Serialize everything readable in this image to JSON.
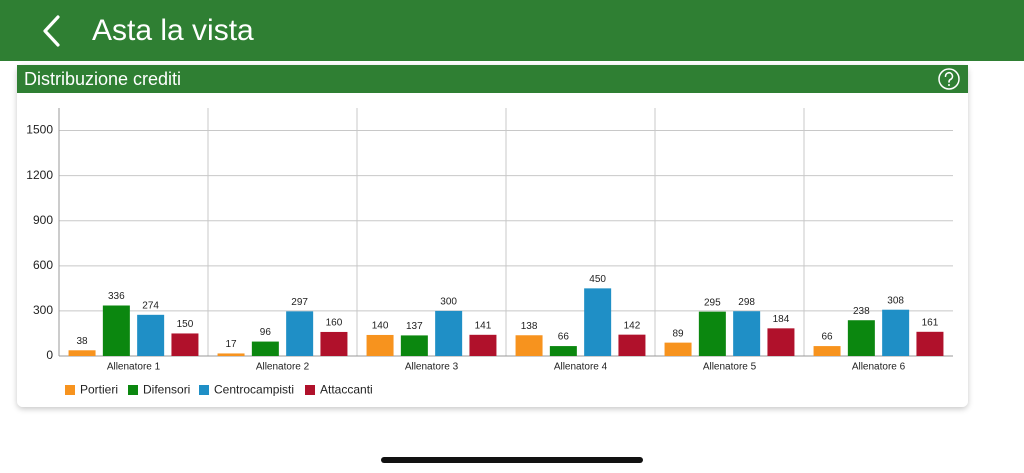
{
  "header": {
    "title": "Asta la vista"
  },
  "card": {
    "title": "Distribuzione crediti"
  },
  "chart_data": {
    "type": "bar",
    "categories": [
      "Allenatore 1",
      "Allenatore 2",
      "Allenatore 3",
      "Allenatore 4",
      "Allenatore 5",
      "Allenatore 6"
    ],
    "series": [
      {
        "name": "Portieri",
        "color": "#f7931e",
        "values": [
          38,
          17,
          140,
          138,
          89,
          66
        ]
      },
      {
        "name": "Difensori",
        "color": "#0b870f",
        "values": [
          336,
          96,
          137,
          66,
          295,
          238
        ]
      },
      {
        "name": "Centrocampisti",
        "color": "#1f8fc6",
        "values": [
          274,
          297,
          300,
          450,
          298,
          308
        ]
      },
      {
        "name": "Attaccanti",
        "color": "#b0112b",
        "values": [
          150,
          160,
          141,
          142,
          184,
          161
        ]
      }
    ],
    "ylim": [
      0,
      1650
    ],
    "yticks": [
      0,
      300,
      600,
      900,
      1200,
      1500
    ],
    "grid": true
  }
}
